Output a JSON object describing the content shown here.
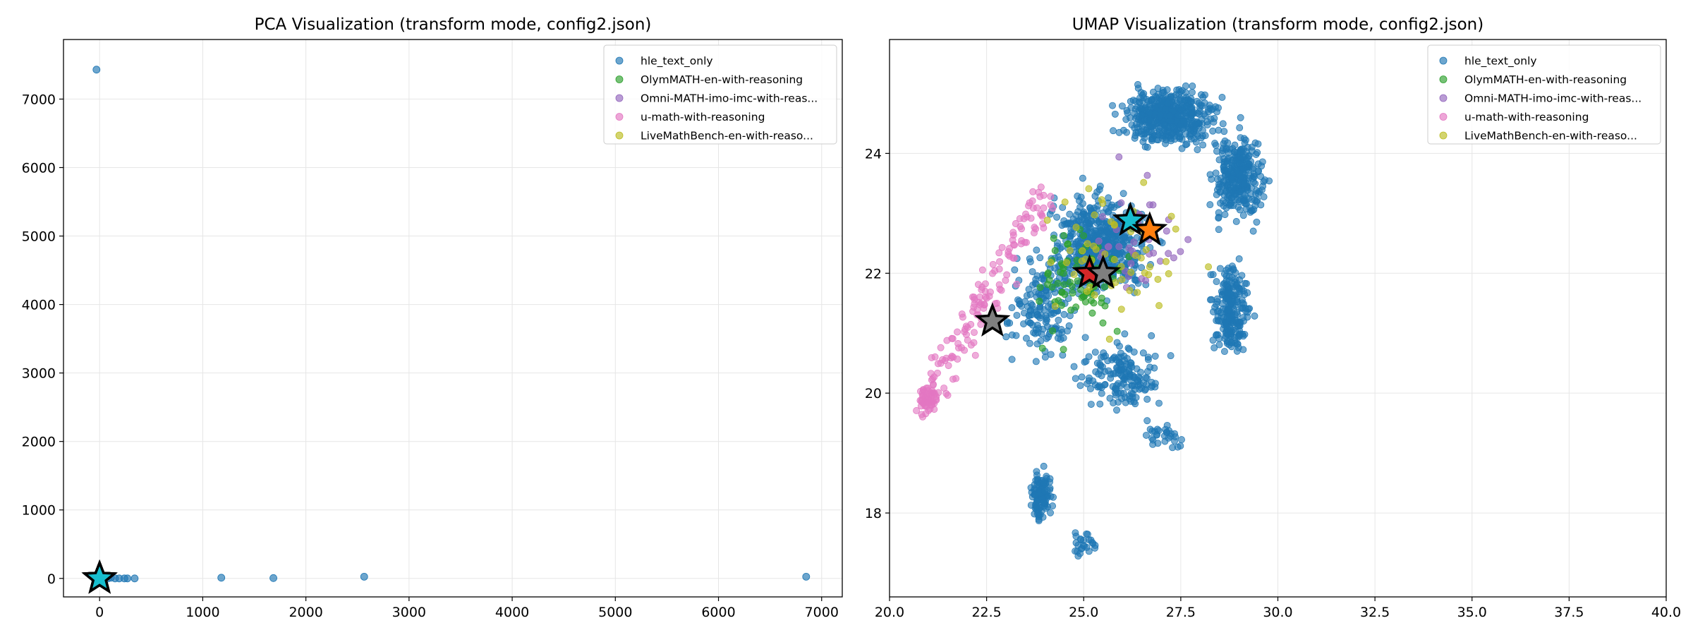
{
  "chart_data": [
    {
      "type": "scatter",
      "title": "PCA Visualization (transform mode, config2.json)",
      "xlim": [
        -350,
        7200
      ],
      "ylim": [
        -270,
        7870
      ],
      "xticks": [
        0,
        1000,
        2000,
        3000,
        4000,
        5000,
        6000,
        7000
      ],
      "yticks": [
        0,
        1000,
        2000,
        3000,
        4000,
        5000,
        6000,
        7000
      ],
      "grid": true,
      "legend_position": "top-right",
      "series": [
        {
          "name": "hle_text_only",
          "color": "#1f77b4",
          "points": [
            [
              -30,
              7430
            ],
            [
              40,
              0
            ],
            [
              80,
              0
            ],
            [
              110,
              10
            ],
            [
              150,
              0
            ],
            [
              190,
              0
            ],
            [
              240,
              0
            ],
            [
              270,
              0
            ],
            [
              340,
              0
            ],
            [
              1180,
              10
            ],
            [
              1685,
              5
            ],
            [
              2565,
              25
            ],
            [
              6850,
              25
            ]
          ]
        },
        {
          "name": "OlymMATH-en-with-reasoning",
          "color": "#2ca02c",
          "points": [
            [
              10,
              0
            ],
            [
              20,
              5
            ]
          ]
        },
        {
          "name": "Omni-MATH-imo-imc-with-reas...",
          "color": "#9467bd",
          "points": [
            [
              15,
              0
            ]
          ]
        },
        {
          "name": "u-math-with-reasoning",
          "color": "#e377c2",
          "points": [
            [
              5,
              5
            ]
          ]
        },
        {
          "name": "LiveMathBench-en-with-reaso...",
          "color": "#bcbd22",
          "points": [
            [
              12,
              3
            ]
          ]
        }
      ],
      "star_markers": [
        {
          "color": "#1f77b4",
          "x": 0,
          "y": 0
        },
        {
          "color": "#ff7f0e",
          "x": 0,
          "y": 0
        },
        {
          "color": "#d62728",
          "x": 0,
          "y": 0
        },
        {
          "color": "#7f7f7f",
          "x": 0,
          "y": 0
        },
        {
          "color": "#17becf",
          "x": 0,
          "y": 0
        }
      ]
    },
    {
      "type": "scatter",
      "title": "UMAP Visualization (transform mode, config2.json)",
      "xlim": [
        20.0,
        40.0
      ],
      "ylim": [
        16.6,
        25.9
      ],
      "xticks": [
        20.0,
        22.5,
        25.0,
        27.5,
        30.0,
        32.5,
        35.0,
        37.5,
        40.0
      ],
      "yticks": [
        18,
        20,
        22,
        24
      ],
      "grid": true,
      "legend_position": "top-right",
      "series": [
        {
          "name": "hle_text_only",
          "color": "#1f77b4"
        },
        {
          "name": "OlymMATH-en-with-reasoning",
          "color": "#2ca02c"
        },
        {
          "name": "Omni-MATH-imo-imc-with-reas...",
          "color": "#9467bd"
        },
        {
          "name": "u-math-with-reasoning",
          "color": "#e377c2"
        },
        {
          "name": "LiveMathBench-en-with-reaso...",
          "color": "#bcbd22"
        }
      ],
      "star_markers": [
        {
          "color": "#17becf",
          "x": 26.2,
          "y": 22.88
        },
        {
          "color": "#ff7f0e",
          "x": 26.7,
          "y": 22.72
        },
        {
          "color": "#d62728",
          "x": 25.15,
          "y": 22.0
        },
        {
          "color": "#7f7f7f",
          "x": 25.5,
          "y": 22.0
        },
        {
          "color": "#7f7f7f",
          "x": 22.65,
          "y": 21.2
        }
      ]
    }
  ]
}
